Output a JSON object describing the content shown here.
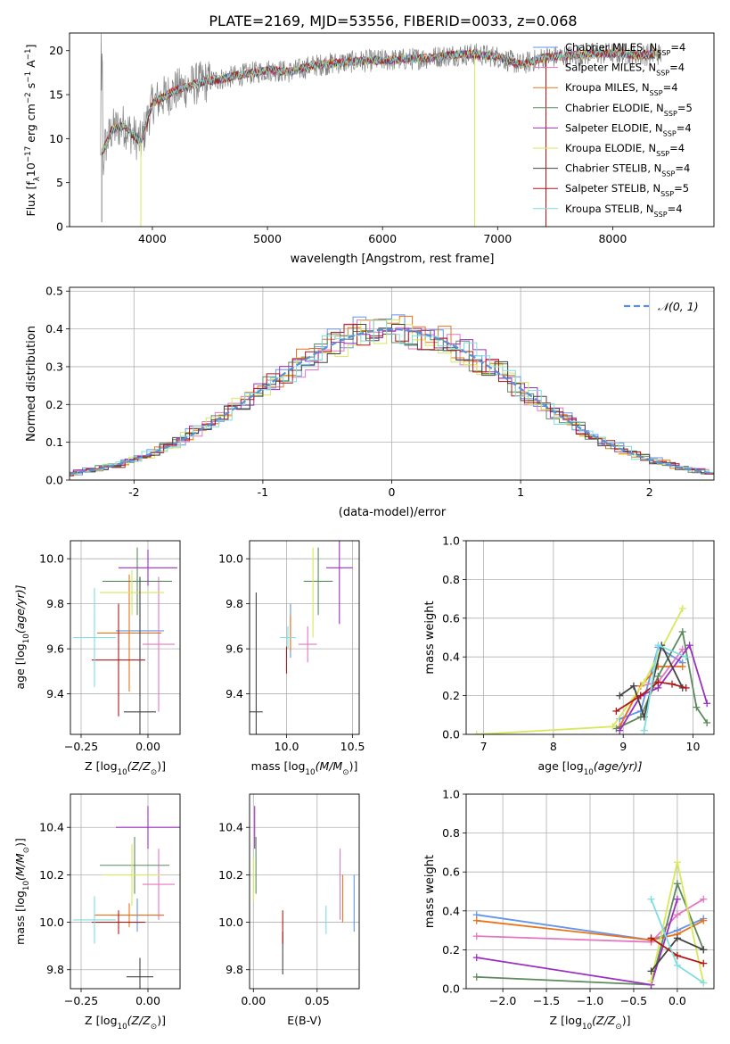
{
  "title": "PLATE=2169, MJD=53556, FIBERID=0033, z=0.068",
  "colors": {
    "chabrier_miles": "#6495ed",
    "salpeter_miles": "#e377c2",
    "kroupa_miles": "#e8731a",
    "chabrier_elodie": "#5d8a5d",
    "salpeter_elodie": "#9b30c0",
    "kroupa_elodie": "#d8e85a",
    "chabrier_stelib": "#444444",
    "salpeter_stelib": "#b01818",
    "kroupa_stelib": "#7fdede",
    "data_spectrum": "#808080",
    "normal_curve": "#5b8fd6"
  },
  "chart_data": [
    {
      "id": "spectrum",
      "type": "line",
      "xlabel": "wavelength [Angstrom, rest frame]",
      "ylabel_parts": [
        "Flux [f",
        "λ",
        "10",
        "−17",
        " erg cm",
        "−2",
        " s",
        "−1",
        " A",
        "−1",
        "]"
      ],
      "xlim": [
        3280,
        8880
      ],
      "ylim": [
        0,
        22
      ],
      "xticks": [
        4000,
        5000,
        6000,
        7000,
        8000
      ],
      "yticks": [
        0,
        5,
        10,
        15,
        20
      ],
      "legend_position": "top-right",
      "legend": [
        {
          "key": "chabrier_miles",
          "label": "Chabrier MILES, N",
          "sub": "SSP",
          "suffix": "=4"
        },
        {
          "key": "salpeter_miles",
          "label": "Salpeter MILES, N",
          "sub": "SSP",
          "suffix": "=4"
        },
        {
          "key": "kroupa_miles",
          "label": "Kroupa MILES, N",
          "sub": "SSP",
          "suffix": "=4"
        },
        {
          "key": "chabrier_elodie",
          "label": "Chabrier ELODIE, N",
          "sub": "SSP",
          "suffix": "=5"
        },
        {
          "key": "salpeter_elodie",
          "label": "Salpeter ELODIE, N",
          "sub": "SSP",
          "suffix": "=4"
        },
        {
          "key": "kroupa_elodie",
          "label": "Kroupa ELODIE, N",
          "sub": "SSP",
          "suffix": "=4"
        },
        {
          "key": "chabrier_stelib",
          "label": "Chabrier STELIB, N",
          "sub": "SSP",
          "suffix": "=4"
        },
        {
          "key": "salpeter_stelib",
          "label": "Salpeter STELIB, N",
          "sub": "SSP",
          "suffix": "=5"
        },
        {
          "key": "kroupa_stelib",
          "label": "Kroupa STELIB, N",
          "sub": "SSP",
          "suffix": "=4"
        }
      ],
      "continuum": [
        [
          3550,
          8.0
        ],
        [
          3650,
          11.0
        ],
        [
          3750,
          11.5
        ],
        [
          3900,
          9.5
        ],
        [
          4000,
          14.0
        ],
        [
          4200,
          15.5
        ],
        [
          4400,
          16.3
        ],
        [
          4600,
          16.8
        ],
        [
          4800,
          17.3
        ],
        [
          5000,
          17.8
        ],
        [
          5200,
          17.6
        ],
        [
          5400,
          18.3
        ],
        [
          5600,
          18.6
        ],
        [
          5800,
          18.8
        ],
        [
          6000,
          18.9
        ],
        [
          6200,
          19.0
        ],
        [
          6400,
          19.2
        ],
        [
          6600,
          19.5
        ],
        [
          6800,
          19.6
        ],
        [
          7000,
          19.3
        ],
        [
          7200,
          18.4
        ],
        [
          7400,
          19.2
        ],
        [
          7600,
          19.4
        ],
        [
          7800,
          19.6
        ],
        [
          8000,
          19.7
        ],
        [
          8200,
          19.5
        ],
        [
          8400,
          19.6
        ]
      ],
      "model_range": [
        3560,
        8420
      ],
      "glitches": [
        [
          3560,
          0.5
        ],
        [
          3900,
          0
        ],
        [
          6800,
          0
        ],
        [
          7420,
          0
        ]
      ]
    },
    {
      "id": "residual_hist",
      "type": "bar",
      "xlabel": "(data-model)/error",
      "ylabel": "Normed distribution",
      "xlim": [
        -2.5,
        2.5
      ],
      "ylim": [
        0,
        0.51
      ],
      "xticks": [
        -2,
        -1,
        0,
        1,
        2
      ],
      "yticks": [
        0.0,
        0.1,
        0.2,
        0.3,
        0.4,
        0.5
      ],
      "legend_position": "top-right",
      "legend_label": "𝒩(0, 1)",
      "bin_width": 0.1
    },
    {
      "id": "age_vs_Z",
      "type": "scatter",
      "xlabel_parts": [
        "Z [log",
        "10",
        "(Z/Z",
        "⊙",
        ")]"
      ],
      "ylabel_parts": [
        "age  [log",
        "10",
        "(age/yr)]"
      ],
      "xlim": [
        -0.29,
        0.12
      ],
      "ylim": [
        9.22,
        10.08
      ],
      "xticks": [
        -0.25,
        0.0
      ],
      "xtick_labels": [
        "−0.25",
        "0.00"
      ],
      "yticks": [
        9.4,
        9.6,
        9.8,
        10.0
      ],
      "points": [
        {
          "key": "chabrier_miles",
          "x": -0.03,
          "xerr": 0.09,
          "y": 9.68,
          "yerr": 0.12
        },
        {
          "key": "salpeter_miles",
          "x": 0.04,
          "xerr": 0.06,
          "y": 9.62,
          "yerr": 0.3
        },
        {
          "key": "kroupa_miles",
          "x": -0.07,
          "xerr": 0.12,
          "y": 9.67,
          "yerr": 0.26
        },
        {
          "key": "chabrier_elodie",
          "x": -0.04,
          "xerr": 0.13,
          "y": 9.9,
          "yerr": 0.15
        },
        {
          "key": "salpeter_elodie",
          "x": 0.0,
          "xerr": 0.11,
          "y": 9.96,
          "yerr": 0.08
        },
        {
          "key": "kroupa_elodie",
          "x": -0.06,
          "xerr": 0.12,
          "y": 9.85,
          "yerr": 0.1
        },
        {
          "key": "chabrier_stelib",
          "x": -0.03,
          "xerr": 0.06,
          "y": 9.32,
          "yerr": 0.6
        },
        {
          "key": "salpeter_stelib",
          "x": -0.11,
          "xerr": 0.1,
          "y": 9.55,
          "yerr": 0.25
        },
        {
          "key": "kroupa_stelib",
          "x": -0.2,
          "xerr": 0.08,
          "y": 9.65,
          "yerr": 0.22
        }
      ]
    },
    {
      "id": "age_vs_mass",
      "type": "scatter",
      "xlabel_parts": [
        "mass [log",
        "10",
        "(M/M",
        "⊙",
        ")]"
      ],
      "xlim": [
        9.72,
        10.55
      ],
      "ylim": [
        9.22,
        10.08
      ],
      "xticks": [
        10.0,
        10.5
      ],
      "xtick_labels": [
        "10.0",
        "10.5"
      ],
      "yticks": [
        9.4,
        9.6,
        9.8,
        10.0
      ],
      "points": [
        {
          "key": "chabrier_miles",
          "x": 10.03,
          "xerr": 0.0,
          "y": 9.68,
          "yerr": 0.12
        },
        {
          "key": "salpeter_miles",
          "x": 10.16,
          "xerr": 0.07,
          "y": 9.62,
          "yerr": 0.08
        },
        {
          "key": "kroupa_miles",
          "x": 10.03,
          "xerr": 0.0,
          "y": 9.67,
          "yerr": 0.08
        },
        {
          "key": "chabrier_elodie",
          "x": 10.24,
          "xerr": 0.11,
          "y": 9.9,
          "yerr": 0.15
        },
        {
          "key": "salpeter_elodie",
          "x": 10.4,
          "xerr": 0.1,
          "y": 9.96,
          "yerr": 0.25
        },
        {
          "key": "kroupa_elodie",
          "x": 10.2,
          "xerr": 0.0,
          "y": 9.85,
          "yerr": 0.2
        },
        {
          "key": "chabrier_stelib",
          "x": 9.77,
          "xerr": 0.05,
          "y": 9.32,
          "yerr": 0.53
        },
        {
          "key": "salpeter_stelib",
          "x": 10.0,
          "xerr": 0.0,
          "y": 9.55,
          "yerr": 0.06
        },
        {
          "key": "kroupa_stelib",
          "x": 10.01,
          "xerr": 0.06,
          "y": 9.65,
          "yerr": 0.05
        }
      ]
    },
    {
      "id": "mass_weight_vs_age",
      "type": "line",
      "xlabel_parts": [
        "age  [log",
        "10",
        "(age/yr)]"
      ],
      "ylabel": "mass weight",
      "xlim": [
        6.75,
        10.3
      ],
      "ylim": [
        0,
        1.0
      ],
      "xticks": [
        7,
        8,
        9,
        10
      ],
      "yticks": [
        0.0,
        0.2,
        0.4,
        0.6,
        0.8,
        1.0
      ],
      "series": [
        {
          "key": "chabrier_miles",
          "x": [
            8.95,
            9.25,
            9.5,
            9.85
          ],
          "y": [
            0.08,
            0.12,
            0.45,
            0.37
          ]
        },
        {
          "key": "salpeter_miles",
          "x": [
            8.95,
            9.25,
            9.5,
            9.85
          ],
          "y": [
            0.04,
            0.25,
            0.27,
            0.44
          ]
        },
        {
          "key": "kroupa_miles",
          "x": [
            8.95,
            9.25,
            9.5,
            9.85
          ],
          "y": [
            0.04,
            0.25,
            0.35,
            0.35
          ]
        },
        {
          "key": "chabrier_elodie",
          "x": [
            8.9,
            9.25,
            9.5,
            9.85,
            10.05,
            10.2
          ],
          "y": [
            0.03,
            0.09,
            0.3,
            0.53,
            0.14,
            0.06
          ]
        },
        {
          "key": "salpeter_elodie",
          "x": [
            8.95,
            9.25,
            9.5,
            9.95,
            10.2
          ],
          "y": [
            0.02,
            0.2,
            0.24,
            0.46,
            0.16
          ]
        },
        {
          "key": "kroupa_elodie",
          "x": [
            6.9,
            8.85,
            9.3,
            9.85
          ],
          "y": [
            0.0,
            0.04,
            0.27,
            0.65
          ]
        },
        {
          "key": "chabrier_stelib",
          "x": [
            8.95,
            9.15,
            9.3,
            9.55,
            9.85
          ],
          "y": [
            0.2,
            0.25,
            0.09,
            0.46,
            0.24
          ]
        },
        {
          "key": "salpeter_stelib",
          "x": [
            8.9,
            9.25,
            9.5,
            9.7,
            9.9
          ],
          "y": [
            0.12,
            0.2,
            0.27,
            0.26,
            0.24
          ]
        },
        {
          "key": "kroupa_stelib",
          "x": [
            9.3,
            9.5,
            9.9
          ],
          "y": [
            0.02,
            0.46,
            0.4
          ]
        }
      ]
    },
    {
      "id": "mass_vs_Z",
      "type": "scatter",
      "xlabel_parts": [
        "Z [log",
        "10",
        "(Z/Z",
        "⊙",
        ")]"
      ],
      "ylabel_parts": [
        "mass [log",
        "10",
        "(M/M",
        "⊙",
        ")]"
      ],
      "xlim": [
        -0.29,
        0.12
      ],
      "ylim": [
        9.72,
        10.54
      ],
      "xticks": [
        -0.25,
        0.0
      ],
      "xtick_labels": [
        "−0.25",
        "0.00"
      ],
      "yticks": [
        9.8,
        10.0,
        10.2,
        10.4
      ],
      "points": [
        {
          "key": "chabrier_miles",
          "x": -0.04,
          "xerr": 0.1,
          "y": 10.03,
          "yerr": 0.07
        },
        {
          "key": "salpeter_miles",
          "x": 0.04,
          "xerr": 0.06,
          "y": 10.16,
          "yerr": 0.15
        },
        {
          "key": "kroupa_miles",
          "x": -0.07,
          "xerr": 0.13,
          "y": 10.03,
          "yerr": 0.05
        },
        {
          "key": "chabrier_elodie",
          "x": -0.05,
          "xerr": 0.13,
          "y": 10.24,
          "yerr": 0.12
        },
        {
          "key": "salpeter_elodie",
          "x": 0.0,
          "xerr": 0.12,
          "y": 10.4,
          "yerr": 0.09
        },
        {
          "key": "kroupa_elodie",
          "x": -0.06,
          "xerr": 0.11,
          "y": 10.2,
          "yerr": 0.13
        },
        {
          "key": "chabrier_stelib",
          "x": -0.03,
          "xerr": 0.05,
          "y": 9.77,
          "yerr": 0.08
        },
        {
          "key": "salpeter_stelib",
          "x": -0.11,
          "xerr": 0.1,
          "y": 10.0,
          "yerr": 0.05
        },
        {
          "key": "kroupa_stelib",
          "x": -0.2,
          "xerr": 0.08,
          "y": 10.01,
          "yerr": 0.1
        }
      ]
    },
    {
      "id": "mass_vs_ebv",
      "type": "scatter",
      "xlabel": "E(B-V)",
      "xlim": [
        -0.003,
        0.083
      ],
      "ylim": [
        9.72,
        10.54
      ],
      "xticks": [
        0.0,
        0.05
      ],
      "xtick_labels": [
        "0.00",
        "0.05"
      ],
      "yticks": [
        9.8,
        10.0,
        10.2,
        10.4
      ],
      "points": [
        {
          "key": "chabrier_miles",
          "x": 0.079,
          "xerr": 0,
          "y": 10.08,
          "yerr": 0.12
        },
        {
          "key": "salpeter_miles",
          "x": 0.068,
          "xerr": 0,
          "y": 10.16,
          "yerr": 0.15
        },
        {
          "key": "kroupa_miles",
          "x": 0.07,
          "xerr": 0,
          "y": 10.1,
          "yerr": 0.1
        },
        {
          "key": "chabrier_elodie",
          "x": 0.002,
          "xerr": 0,
          "y": 10.24,
          "yerr": 0.12
        },
        {
          "key": "salpeter_elodie",
          "x": 0.001,
          "xerr": 0,
          "y": 10.4,
          "yerr": 0.09
        },
        {
          "key": "kroupa_elodie",
          "x": 0.0,
          "xerr": 0,
          "y": 10.18,
          "yerr": 0.09
        },
        {
          "key": "chabrier_stelib",
          "x": 0.023,
          "xerr": 0,
          "y": 9.87,
          "yerr": 0.09
        },
        {
          "key": "salpeter_stelib",
          "x": 0.023,
          "xerr": 0,
          "y": 9.98,
          "yerr": 0.07
        },
        {
          "key": "kroupa_stelib",
          "x": 0.057,
          "xerr": 0,
          "y": 10.01,
          "yerr": 0.06
        }
      ]
    },
    {
      "id": "mass_weight_vs_Z",
      "type": "line",
      "xlabel_parts": [
        "Z [log",
        "10",
        "(Z/Z",
        "⊙",
        ")]"
      ],
      "ylabel": "mass weight",
      "xlim": [
        -2.42,
        0.42
      ],
      "ylim": [
        0,
        1.0
      ],
      "xticks": [
        -2.0,
        -1.5,
        -1.0,
        -0.5,
        0.0
      ],
      "xtick_labels": [
        "−2.0",
        "−1.5",
        "−1.0",
        "−0.5",
        "0.0"
      ],
      "yticks": [
        0.0,
        0.2,
        0.4,
        0.6,
        0.8,
        1.0
      ],
      "series": [
        {
          "key": "chabrier_miles",
          "x": [
            -2.3,
            -0.3,
            0.0,
            0.3
          ],
          "y": [
            0.38,
            0.25,
            0.3,
            0.36
          ]
        },
        {
          "key": "salpeter_miles",
          "x": [
            -2.3,
            -0.3,
            0.0,
            0.3
          ],
          "y": [
            0.27,
            0.24,
            0.38,
            0.46
          ]
        },
        {
          "key": "kroupa_miles",
          "x": [
            -2.3,
            -0.3,
            0.0,
            0.3
          ],
          "y": [
            0.35,
            0.25,
            0.28,
            0.35
          ]
        },
        {
          "key": "chabrier_elodie",
          "x": [
            -2.3,
            -0.3,
            0.0,
            0.3
          ],
          "y": [
            0.06,
            0.02,
            0.54,
            0.2
          ]
        },
        {
          "key": "salpeter_elodie",
          "x": [
            -2.3,
            -0.3,
            0.0
          ],
          "y": [
            0.16,
            0.02,
            0.46
          ]
        },
        {
          "key": "kroupa_elodie",
          "x": [
            -0.3,
            0.0,
            0.3
          ],
          "y": [
            0.04,
            0.65,
            0.03
          ]
        },
        {
          "key": "chabrier_stelib",
          "x": [
            -0.3,
            0.0,
            0.3
          ],
          "y": [
            0.09,
            0.26,
            0.2
          ]
        },
        {
          "key": "salpeter_stelib",
          "x": [
            -0.3,
            0.0,
            0.3
          ],
          "y": [
            0.26,
            0.17,
            0.13
          ]
        },
        {
          "key": "kroupa_stelib",
          "x": [
            -0.3,
            0.0,
            0.3
          ],
          "y": [
            0.46,
            0.12,
            0.03
          ]
        }
      ]
    }
  ]
}
